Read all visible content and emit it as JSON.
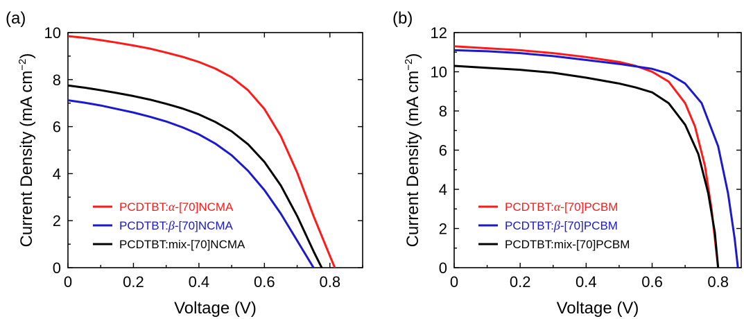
{
  "chart_data": [
    {
      "panel_label": "(a)",
      "type": "line",
      "xlabel": "Voltage (V)",
      "ylabel_main": "Current Density (mA cm",
      "ylabel_sup": "−2",
      "ylabel_end": ")",
      "xlim": [
        0,
        0.9
      ],
      "ylim": [
        0,
        10
      ],
      "xticks": [
        0,
        0.2,
        0.4,
        0.6,
        0.8
      ],
      "xtick_labels": [
        "0",
        "0.2",
        "0.4",
        "0.6",
        "0.8"
      ],
      "yticks": [
        0,
        2,
        4,
        6,
        8,
        10
      ],
      "ytick_labels": [
        "0",
        "2",
        "4",
        "6",
        "8",
        "10"
      ],
      "legend_position": "bottom-left",
      "series": [
        {
          "name_prefix": "PCDTBT:",
          "name_greek": "α",
          "name_suffix": "-[70]NCMA",
          "color": "#ff1a1a",
          "x": [
            0,
            0.05,
            0.1,
            0.15,
            0.2,
            0.25,
            0.3,
            0.35,
            0.4,
            0.45,
            0.5,
            0.55,
            0.6,
            0.65,
            0.7,
            0.75,
            0.8,
            0.815
          ],
          "y": [
            9.85,
            9.78,
            9.68,
            9.57,
            9.45,
            9.32,
            9.15,
            8.97,
            8.75,
            8.47,
            8.1,
            7.55,
            6.75,
            5.6,
            4.05,
            2.2,
            0.5,
            0
          ]
        },
        {
          "name_prefix": "PCDTBT:",
          "name_greek": "β",
          "name_suffix": "-[70]NCMA",
          "color": "#1a1acc",
          "x": [
            0,
            0.05,
            0.1,
            0.15,
            0.2,
            0.25,
            0.3,
            0.35,
            0.4,
            0.45,
            0.5,
            0.55,
            0.6,
            0.65,
            0.7,
            0.75
          ],
          "y": [
            7.12,
            7.02,
            6.9,
            6.75,
            6.6,
            6.42,
            6.22,
            5.97,
            5.67,
            5.28,
            4.78,
            4.12,
            3.3,
            2.3,
            1.15,
            0
          ]
        },
        {
          "name_prefix": "PCDTBT:mix",
          "name_greek": "",
          "name_suffix": "-[70]NCMA",
          "color": "#000000",
          "x": [
            0,
            0.05,
            0.1,
            0.15,
            0.2,
            0.25,
            0.3,
            0.35,
            0.4,
            0.45,
            0.5,
            0.55,
            0.6,
            0.65,
            0.7,
            0.75,
            0.775
          ],
          "y": [
            7.75,
            7.66,
            7.55,
            7.43,
            7.3,
            7.15,
            6.97,
            6.77,
            6.52,
            6.2,
            5.8,
            5.25,
            4.5,
            3.5,
            2.2,
            0.7,
            0
          ]
        }
      ]
    },
    {
      "panel_label": "(b)",
      "type": "line",
      "xlabel": "Voltage (V)",
      "ylabel_main": "Current Density (mA cm",
      "ylabel_sup": "−2",
      "ylabel_end": ")",
      "xlim": [
        0,
        0.87
      ],
      "ylim": [
        0,
        12
      ],
      "xticks": [
        0,
        0.2,
        0.4,
        0.6,
        0.8
      ],
      "xtick_labels": [
        "0",
        "0.2",
        "0.4",
        "0.6",
        "0.8"
      ],
      "yticks": [
        0,
        2,
        4,
        6,
        8,
        10,
        12
      ],
      "ytick_labels": [
        "0",
        "2",
        "4",
        "6",
        "8",
        "10",
        "12"
      ],
      "legend_position": "bottom-left",
      "series": [
        {
          "name_prefix": "PCDTBT:",
          "name_greek": "α",
          "name_suffix": "-[70]PCBM",
          "color": "#ff1a1a",
          "x": [
            0,
            0.1,
            0.2,
            0.3,
            0.4,
            0.5,
            0.55,
            0.6,
            0.65,
            0.7,
            0.73,
            0.76,
            0.78,
            0.79,
            0.8
          ],
          "y": [
            11.3,
            11.2,
            11.1,
            10.95,
            10.75,
            10.5,
            10.3,
            10.0,
            9.5,
            8.4,
            7.2,
            5.2,
            3.0,
            1.5,
            0
          ]
        },
        {
          "name_prefix": "PCDTBT:",
          "name_greek": "β",
          "name_suffix": "-[70]PCBM",
          "color": "#1a1acc",
          "x": [
            0,
            0.1,
            0.2,
            0.3,
            0.4,
            0.5,
            0.6,
            0.65,
            0.7,
            0.75,
            0.8,
            0.83,
            0.85,
            0.86
          ],
          "y": [
            11.1,
            11.05,
            10.95,
            10.8,
            10.6,
            10.4,
            10.15,
            9.9,
            9.4,
            8.4,
            6.2,
            3.8,
            1.5,
            0
          ]
        },
        {
          "name_prefix": "PCDTBT:mix",
          "name_greek": "",
          "name_suffix": "-[70]PCBM",
          "color": "#000000",
          "x": [
            0,
            0.1,
            0.2,
            0.3,
            0.4,
            0.5,
            0.55,
            0.6,
            0.65,
            0.7,
            0.74,
            0.77,
            0.79,
            0.8
          ],
          "y": [
            10.3,
            10.2,
            10.1,
            9.95,
            9.7,
            9.4,
            9.2,
            8.95,
            8.4,
            7.3,
            5.8,
            3.8,
            1.8,
            0
          ]
        }
      ]
    }
  ]
}
